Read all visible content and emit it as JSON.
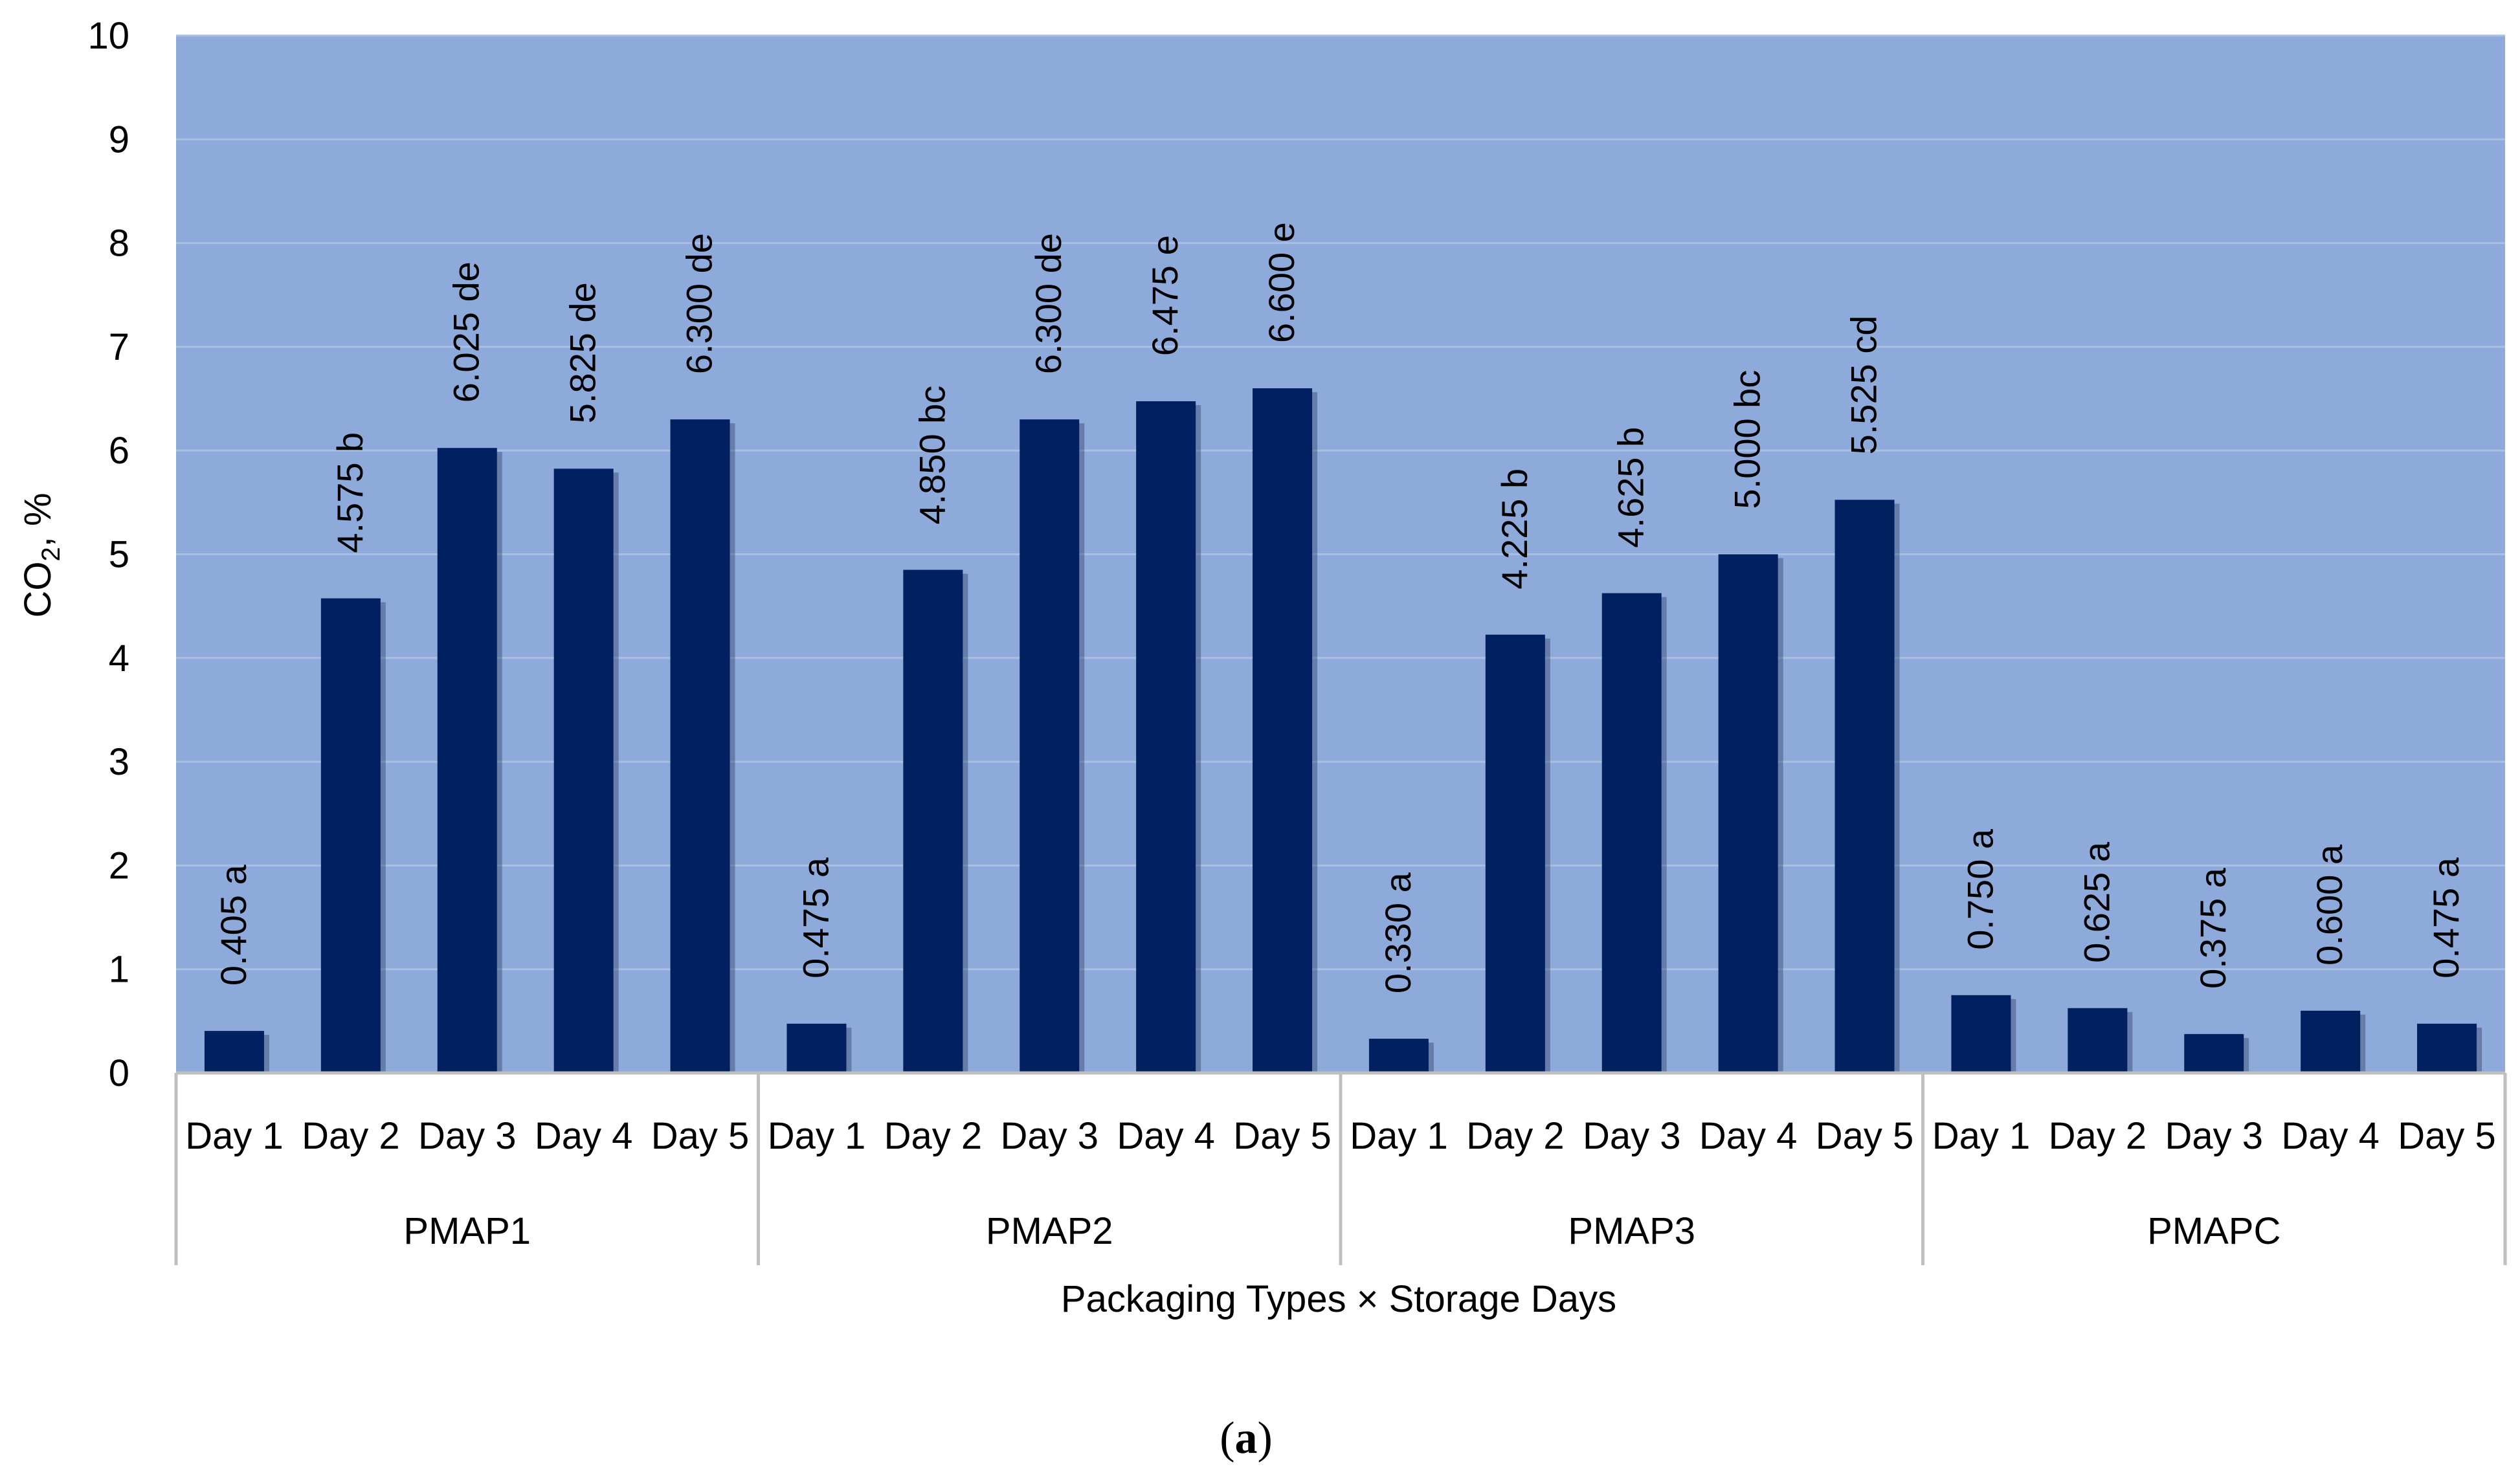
{
  "chart_data": {
    "type": "bar",
    "groups": [
      "PMAP1",
      "PMAP2",
      "PMAP3",
      "PMAPC"
    ],
    "days": [
      "Day 1",
      "Day 2",
      "Day 3",
      "Day 4",
      "Day 5"
    ],
    "series": [
      {
        "group": "PMAP1",
        "values": [
          0.405,
          4.575,
          6.025,
          5.825,
          6.3
        ],
        "labels": [
          "0.405 a",
          "4.575 b",
          "6.025 de",
          "5.825 de",
          "6.300 de"
        ]
      },
      {
        "group": "PMAP2",
        "values": [
          0.475,
          4.85,
          6.3,
          6.475,
          6.6
        ],
        "labels": [
          "0.475 a",
          "4.850 bc",
          "6.300 de",
          "6.475 e",
          "6.600 e"
        ]
      },
      {
        "group": "PMAP3",
        "values": [
          0.33,
          4.225,
          4.625,
          5.0,
          5.525
        ],
        "labels": [
          "0.330 a",
          "4.225 b",
          "4.625 b",
          "5.000 bc",
          "5.525 cd"
        ]
      },
      {
        "group": "PMAPC",
        "values": [
          0.75,
          0.625,
          0.375,
          0.6,
          0.475
        ],
        "labels": [
          "0.750 a",
          "0.625 a",
          "0.375 a",
          "0.600 a",
          "0.475 a"
        ]
      }
    ],
    "ylim": [
      0,
      10
    ],
    "yticks": [
      "0",
      "1",
      "2",
      "3",
      "4",
      "5",
      "6",
      "7",
      "8",
      "9",
      "10"
    ],
    "ylabel": "CO2, %",
    "ylabel_main": "CO",
    "ylabel_sub": "2",
    "ylabel_rest": ", %",
    "xlabel": "Packaging Types × Storage Days",
    "grid": true,
    "colors": {
      "plot_bg": "#8eaadb",
      "bar": "#002060",
      "grid": "#a9bfe4",
      "axis": "#bfbfbf"
    }
  },
  "caption": {
    "open": "(",
    "letter": "a",
    "close": ")"
  }
}
